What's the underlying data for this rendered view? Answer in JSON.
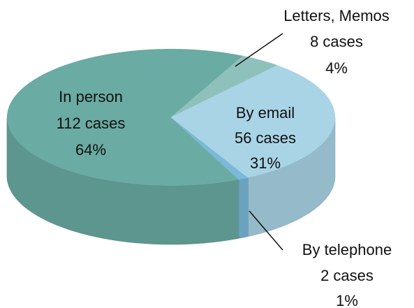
{
  "chart_data": {
    "type": "pie3d",
    "categories": [
      "In person",
      "Letters, Memos",
      "By email",
      "By telephone"
    ],
    "values": [
      64,
      4,
      31,
      1
    ],
    "value_labels": [
      "64%",
      "4%",
      "31%",
      "1%"
    ],
    "case_labels": [
      "112 cases",
      "8 cases",
      "56 cases",
      "2 cases"
    ],
    "colors": [
      "#6aaba3",
      "#8fc1bc",
      "#a9d4e6",
      "#7ab9d9"
    ]
  }
}
